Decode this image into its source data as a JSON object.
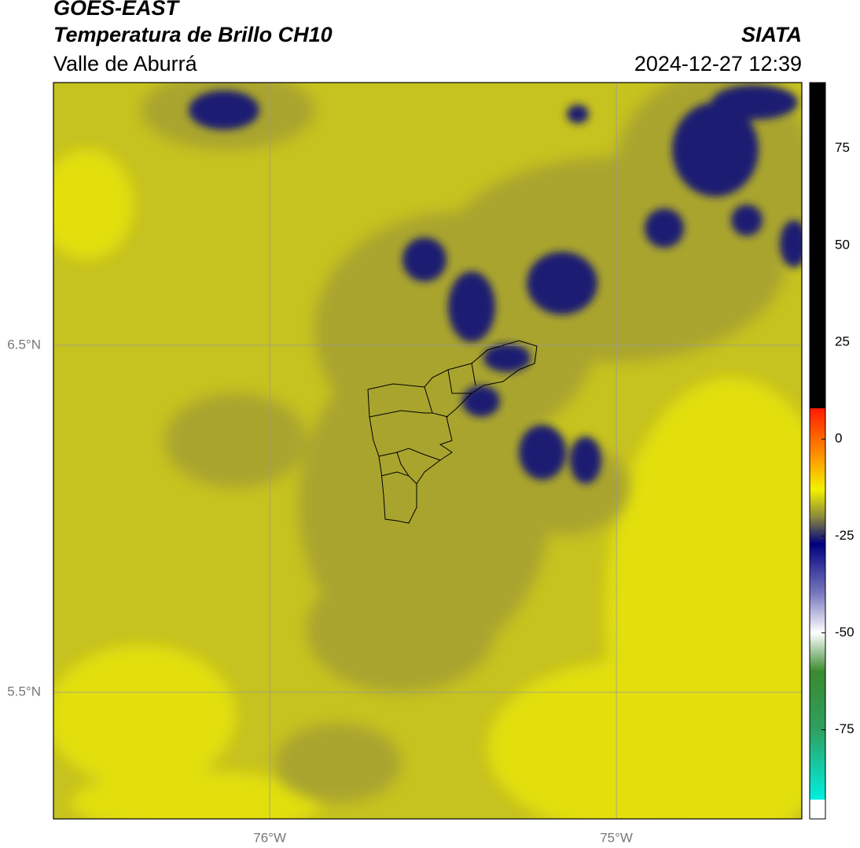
{
  "header": {
    "title": "GOES-EAST",
    "subtitle": "Temperatura de Brillo CH10",
    "region": "Valle de Aburrá",
    "source": "SIATA",
    "timestamp": "2024-12-27 12:39"
  },
  "map": {
    "lonlim": [
      -76.624,
      -74.465
    ],
    "latlim": [
      5.135,
      7.257
    ],
    "lonticks": [
      {
        "value": -76,
        "label": "76°W"
      },
      {
        "value": -75,
        "label": "75°W"
      }
    ],
    "latticks": [
      {
        "value": 6.5,
        "label": "6.5°N"
      },
      {
        "value": 5.5,
        "label": "5.5°N"
      }
    ],
    "grid": true
  },
  "colorbar": {
    "lim": [
      -98,
      92
    ],
    "ticks": [
      75,
      50,
      25,
      0,
      -25,
      -50,
      -75
    ],
    "stops": [
      {
        "value": 92,
        "color": "#000000"
      },
      {
        "value": 8,
        "color": "#000000"
      },
      {
        "value": 8,
        "color": "#ff1a00"
      },
      {
        "value": -5,
        "color": "#ff9a00"
      },
      {
        "value": -13,
        "color": "#f2f200"
      },
      {
        "value": -20,
        "color": "#8c8a3c"
      },
      {
        "value": -27,
        "color": "#000080"
      },
      {
        "value": -40,
        "color": "#7a7ac0"
      },
      {
        "value": -50,
        "color": "#ffffff"
      },
      {
        "value": -60,
        "color": "#3a8a2e"
      },
      {
        "value": -75,
        "color": "#2ea060"
      },
      {
        "value": -93,
        "color": "#00f0e0"
      },
      {
        "value": -93,
        "color": "#ffffff"
      },
      {
        "value": -98,
        "color": "#ffffff"
      }
    ]
  }
}
